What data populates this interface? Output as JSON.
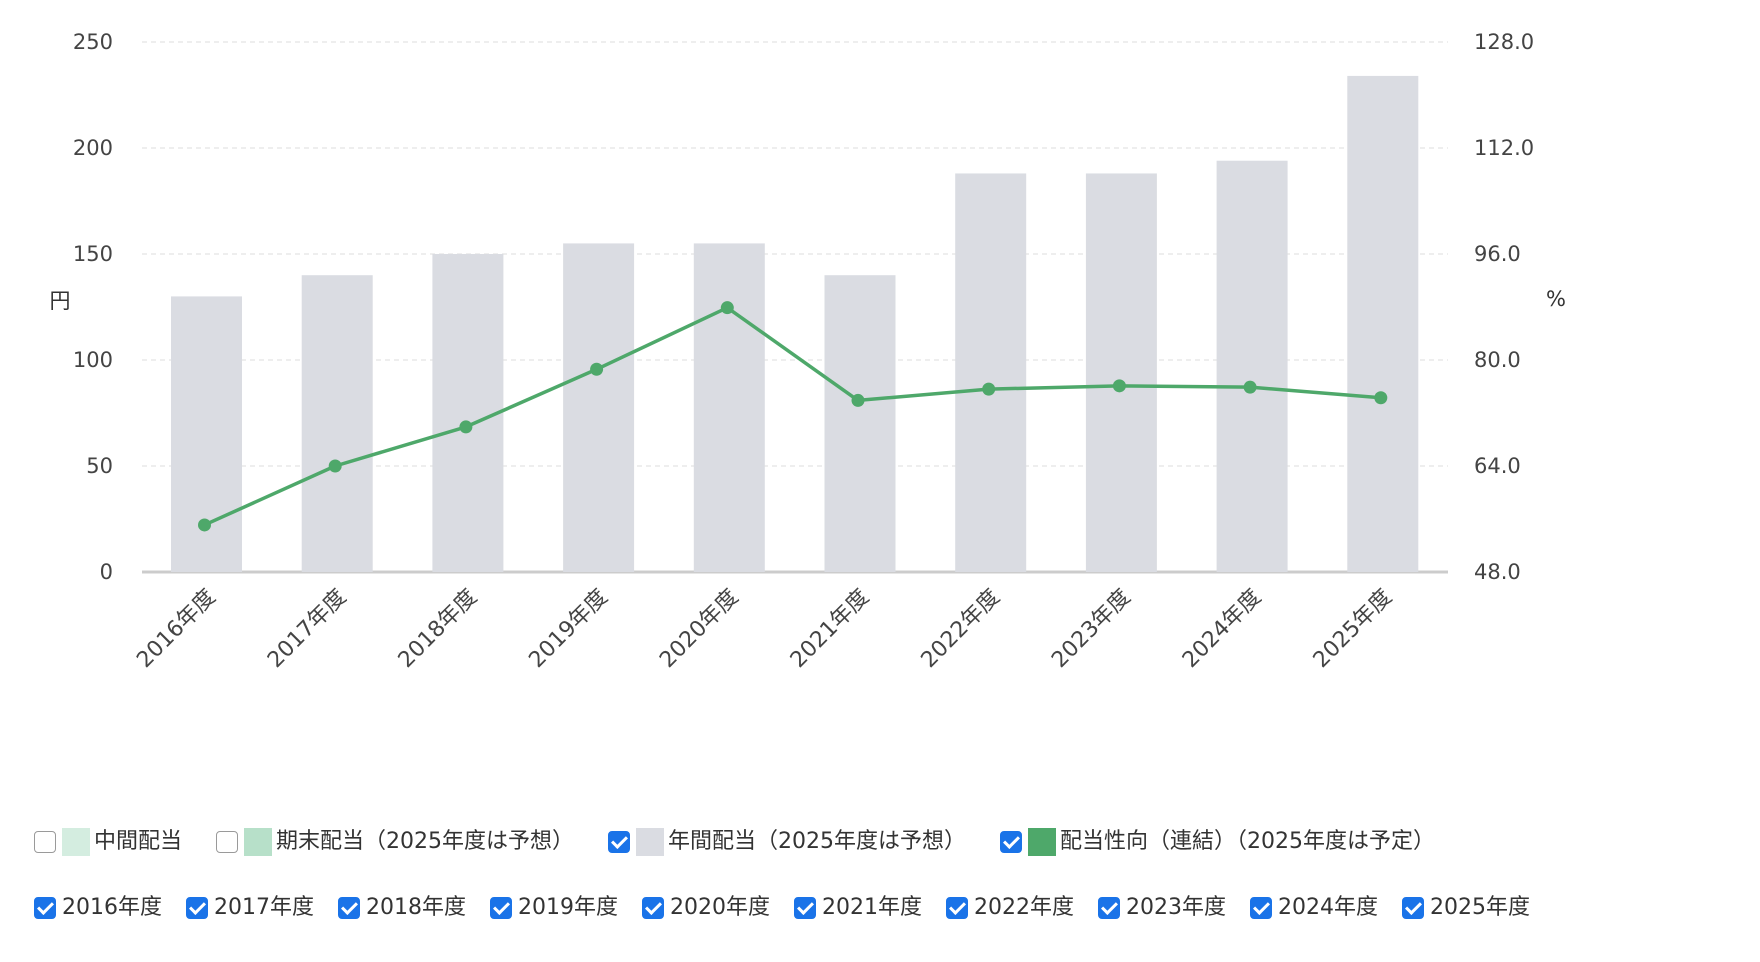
{
  "chart_data": {
    "type": "bar",
    "categories": [
      "2016年度",
      "2017年度",
      "2018年度",
      "2019年度",
      "2020年度",
      "2021年度",
      "2022年度",
      "2023年度",
      "2024年度",
      "2025年度"
    ],
    "series": [
      {
        "name": "年間配当（2025年度は予想）",
        "type": "bar",
        "axis": "left",
        "color": "#dadce2",
        "values": [
          130,
          140,
          150,
          155,
          155,
          140,
          188,
          188,
          194,
          234
        ]
      },
      {
        "name": "配当性向（連結）（2025年度は予定）",
        "type": "line",
        "axis": "right",
        "color": "#4ea86a",
        "values": [
          55.1,
          64.0,
          69.9,
          78.6,
          87.9,
          73.9,
          75.6,
          76.1,
          75.9,
          74.3
        ]
      }
    ],
    "y_left": {
      "label": "円",
      "ticks": [
        "0",
        "50",
        "100",
        "150",
        "200",
        "250"
      ],
      "range": [
        0,
        250
      ]
    },
    "y_right": {
      "label": "%",
      "ticks": [
        "48.0",
        "64.0",
        "80.0",
        "96.0",
        "112.0",
        "128.0"
      ],
      "range": [
        48,
        128
      ]
    },
    "grid": true,
    "legend_position": "bottom"
  },
  "legend": {
    "series_items": [
      {
        "label": "中間配当",
        "checked": false,
        "color": "#d4ede0"
      },
      {
        "label": "期末配当（2025年度は予想）",
        "checked": false,
        "color": "#b7e0c9"
      },
      {
        "label": "年間配当（2025年度は予想）",
        "checked": true,
        "color": "#dadce2"
      },
      {
        "label": "配当性向（連結）（2025年度は予定）",
        "checked": true,
        "color": "#4ea86a"
      }
    ],
    "year_items": [
      {
        "label": "2016年度",
        "checked": true
      },
      {
        "label": "2017年度",
        "checked": true
      },
      {
        "label": "2018年度",
        "checked": true
      },
      {
        "label": "2019年度",
        "checked": true
      },
      {
        "label": "2020年度",
        "checked": true
      },
      {
        "label": "2021年度",
        "checked": true
      },
      {
        "label": "2022年度",
        "checked": true
      },
      {
        "label": "2023年度",
        "checked": true
      },
      {
        "label": "2024年度",
        "checked": true
      },
      {
        "label": "2025年度",
        "checked": true
      }
    ]
  }
}
